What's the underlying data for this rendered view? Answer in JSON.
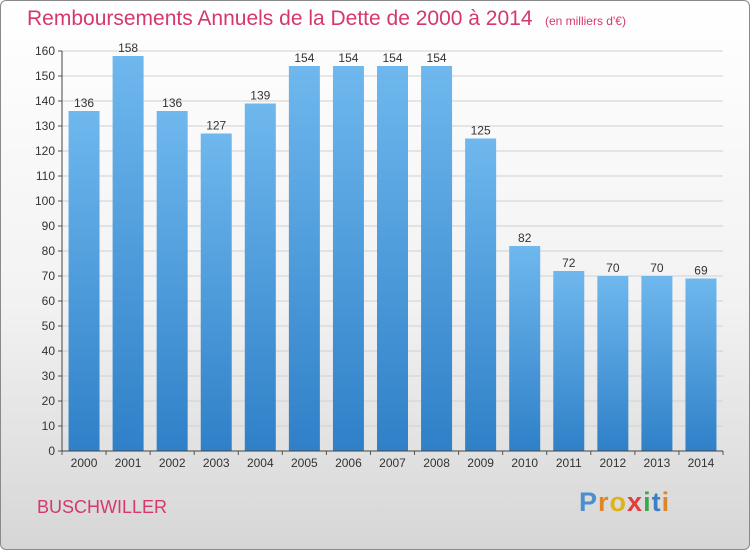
{
  "header": {
    "title": "Remboursements Annuels de la Dette de 2000 à 2014",
    "unit": "(en milliers d'€)"
  },
  "footer": {
    "commune": "BUSCHWILLER",
    "logo_letters": [
      "P",
      "r",
      "o",
      "x",
      "i",
      "t",
      "i"
    ]
  },
  "colors": {
    "bar": "#4e9fe0",
    "bar_light": "#6fb8ee",
    "bar_dark": "#2f80c8",
    "title": "#d6376e",
    "grid": "#d0d0d0"
  },
  "chart_data": {
    "type": "bar",
    "title": "Remboursements Annuels de la Dette de 2000 à 2014",
    "subtitle": "(en milliers d'€)",
    "xlabel": "",
    "ylabel": "",
    "categories": [
      "2000",
      "2001",
      "2002",
      "2003",
      "2004",
      "2005",
      "2006",
      "2007",
      "2008",
      "2009",
      "2010",
      "2011",
      "2012",
      "2013",
      "2014"
    ],
    "values": [
      136,
      158,
      136,
      127,
      139,
      154,
      154,
      154,
      154,
      125,
      82,
      72,
      70,
      70,
      69
    ],
    "ylim": [
      0,
      160
    ],
    "yticks": [
      0,
      10,
      20,
      30,
      40,
      50,
      60,
      70,
      80,
      90,
      100,
      110,
      120,
      130,
      140,
      150,
      160
    ],
    "grid": true,
    "legend": "none"
  }
}
